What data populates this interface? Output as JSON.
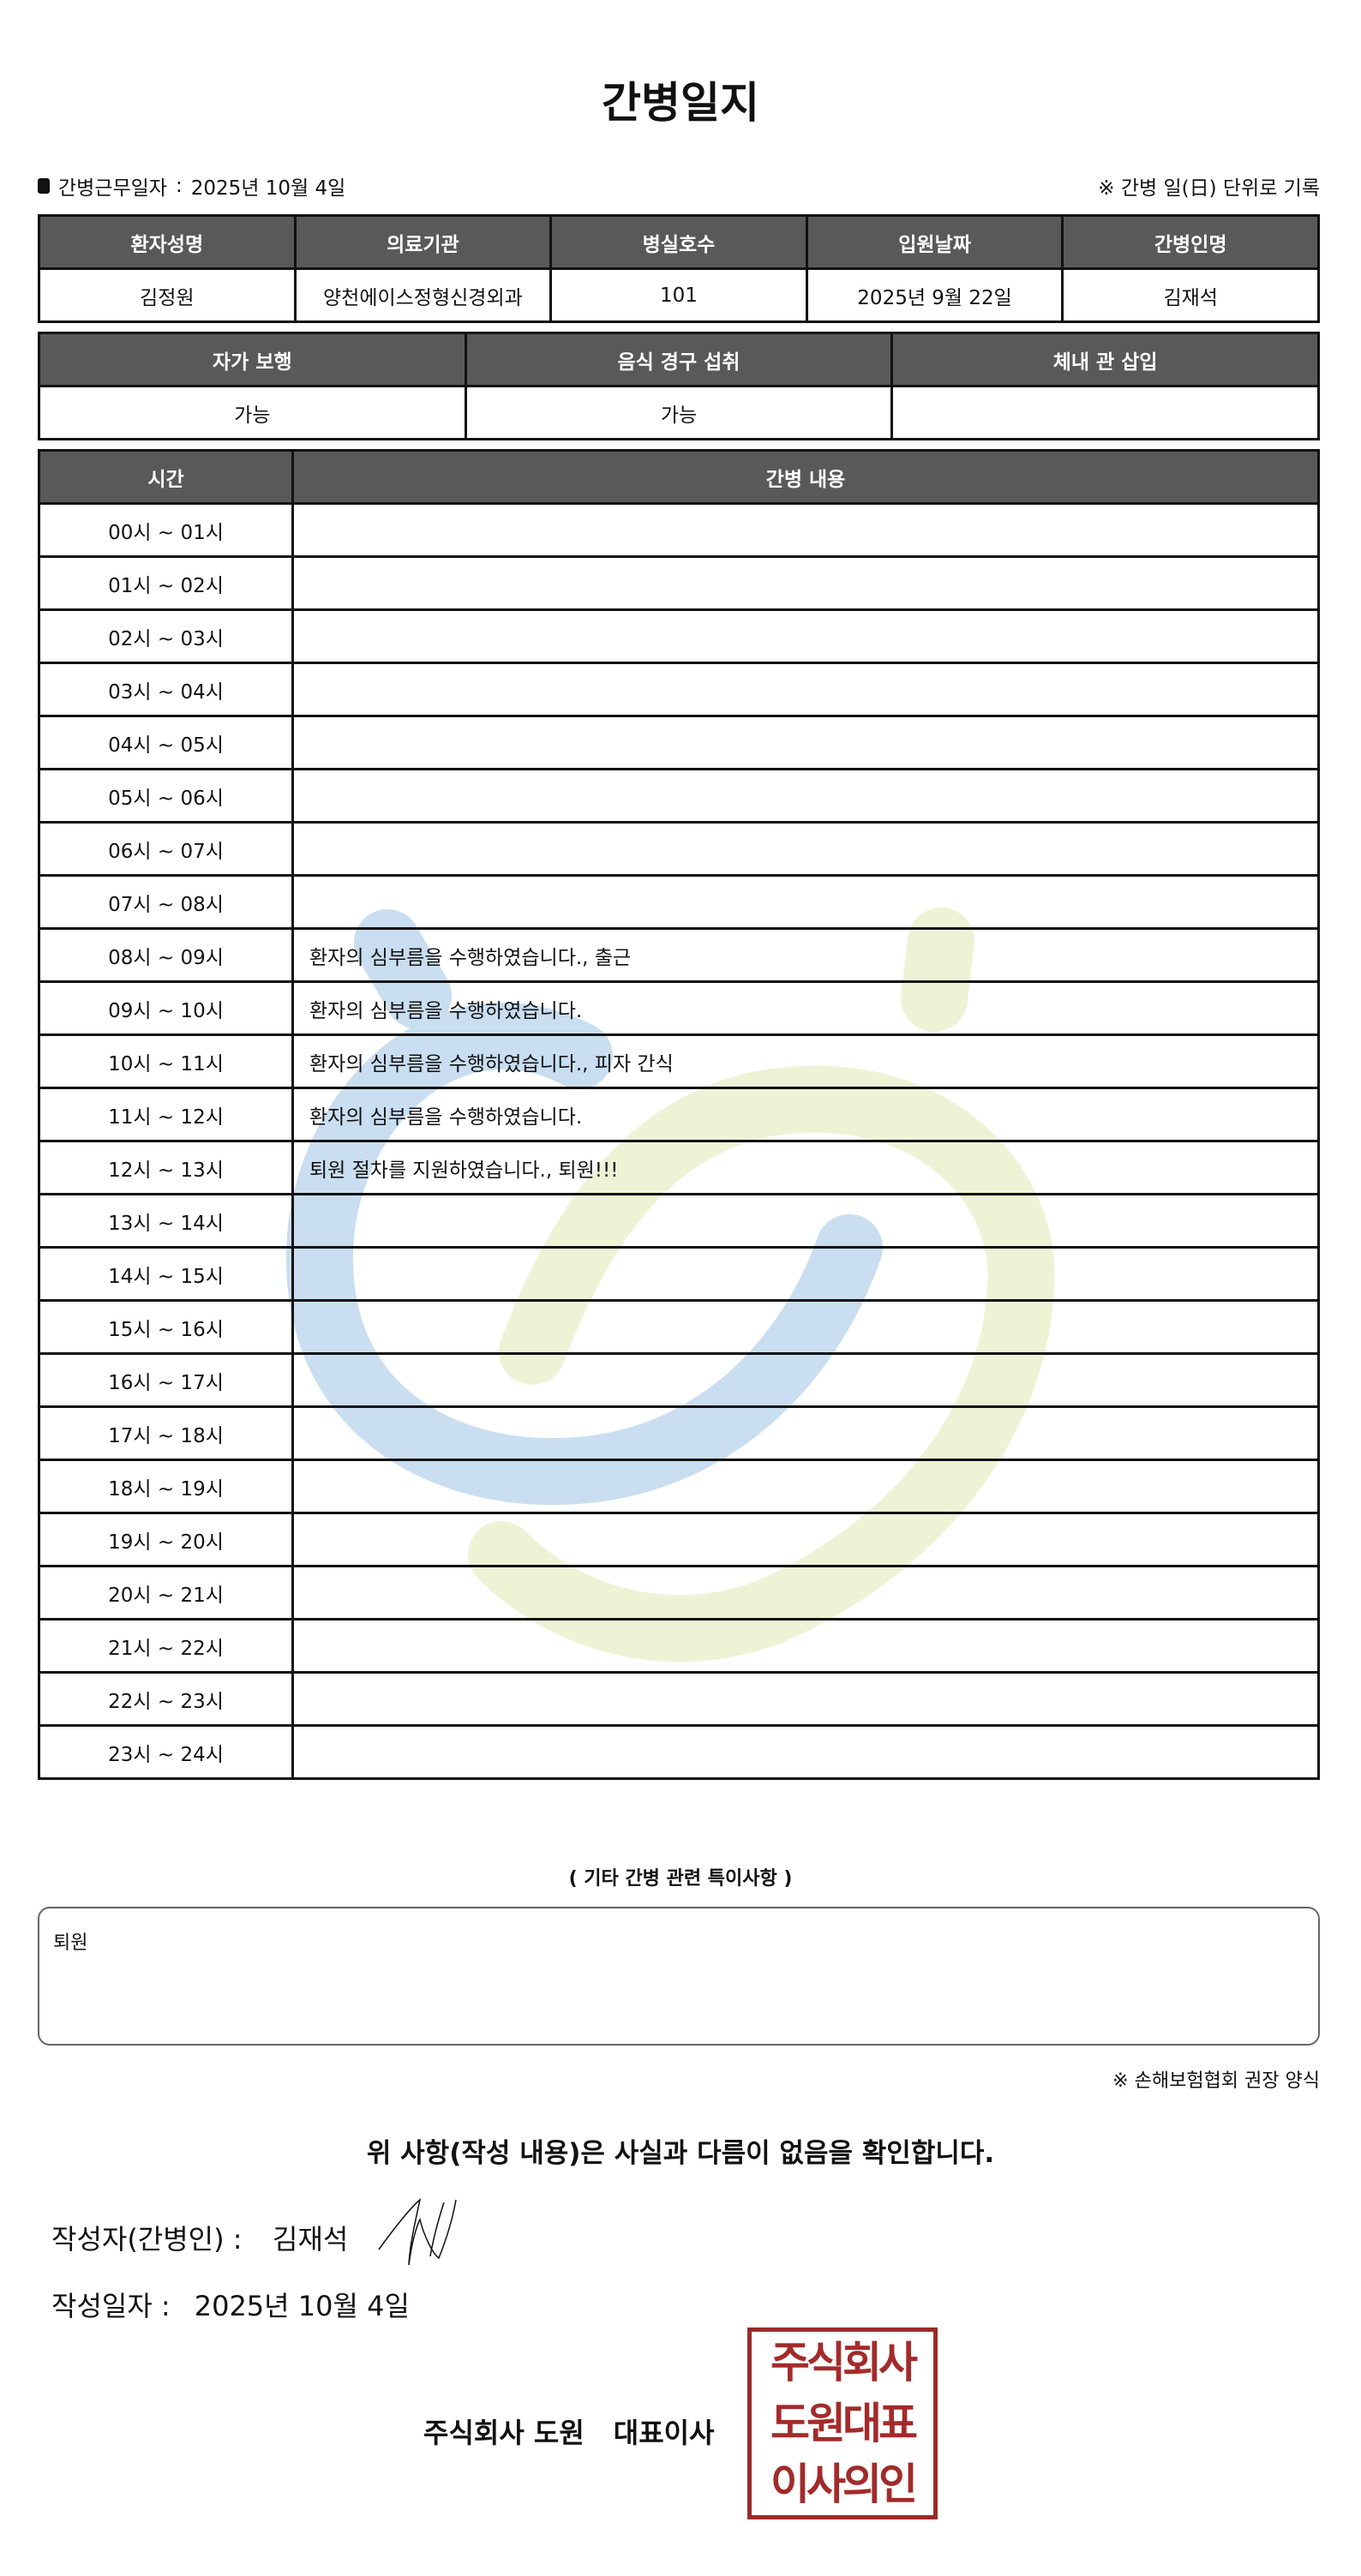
{
  "title": "간병일지",
  "info": {
    "label": "간병근무일자",
    "sep": ":",
    "date": "2025년 10월 4일",
    "note": "※ 간병 일(日) 단위로 기록"
  },
  "patient_table": {
    "headers": [
      "환자성명",
      "의료기관",
      "병실호수",
      "입원날짜",
      "간병인명"
    ],
    "values": [
      "김정원",
      "양천에이스정형신경외과",
      "101",
      "2025년 9월 22일",
      "김재석"
    ]
  },
  "status_table": {
    "headers": [
      "자가 보행",
      "음식 경구 섭취",
      "체내 관 삽입"
    ],
    "values": [
      "가능",
      "가능",
      ""
    ]
  },
  "log_table": {
    "headers": [
      "시간",
      "간병 내용"
    ],
    "rows": [
      {
        "time": "00시 ~ 01시",
        "content": ""
      },
      {
        "time": "01시 ~ 02시",
        "content": ""
      },
      {
        "time": "02시 ~ 03시",
        "content": ""
      },
      {
        "time": "03시 ~ 04시",
        "content": ""
      },
      {
        "time": "04시 ~ 05시",
        "content": ""
      },
      {
        "time": "05시 ~ 06시",
        "content": ""
      },
      {
        "time": "06시 ~ 07시",
        "content": ""
      },
      {
        "time": "07시 ~ 08시",
        "content": ""
      },
      {
        "time": "08시 ~ 09시",
        "content": "환자의 심부름을 수행하였습니다., 출근"
      },
      {
        "time": "09시 ~ 10시",
        "content": "환자의 심부름을 수행하였습니다."
      },
      {
        "time": "10시 ~ 11시",
        "content": "환자의 심부름을 수행하였습니다., 피자 간식"
      },
      {
        "time": "11시 ~ 12시",
        "content": "환자의 심부름을 수행하였습니다."
      },
      {
        "time": "12시 ~ 13시",
        "content": "퇴원 절차를 지원하였습니다., 퇴원!!!"
      },
      {
        "time": "13시 ~ 14시",
        "content": ""
      },
      {
        "time": "14시 ~ 15시",
        "content": ""
      },
      {
        "time": "15시 ~ 16시",
        "content": ""
      },
      {
        "time": "16시 ~ 17시",
        "content": ""
      },
      {
        "time": "17시 ~ 18시",
        "content": ""
      },
      {
        "time": "18시 ~ 19시",
        "content": ""
      },
      {
        "time": "19시 ~ 20시",
        "content": ""
      },
      {
        "time": "20시 ~ 21시",
        "content": ""
      },
      {
        "time": "21시 ~ 22시",
        "content": ""
      },
      {
        "time": "22시 ~ 23시",
        "content": ""
      },
      {
        "time": "23시 ~ 24시",
        "content": ""
      }
    ]
  },
  "special": {
    "heading": "( 기타 간병 관련 특이사항 )",
    "text": "퇴원"
  },
  "form_note": "※ 손해보험협회 권장 양식",
  "confirm": "위 사항(작성 내용)은 사실과 다름이 없음을 확인합니다.",
  "writer": {
    "label": "작성자(간병인) :",
    "name": "김재석"
  },
  "written_date": {
    "label": "작성일자 :",
    "value": "2025년 10월 4일"
  },
  "company": {
    "name": "주식회사 도원",
    "title": "대표이사"
  },
  "seal": {
    "lines": [
      "주식회사",
      "도원대표",
      "이사의인"
    ],
    "color": "#9b2a2a"
  },
  "colors": {
    "header_bg": "#595959",
    "watermark_blue": "#c9def0",
    "watermark_green": "#eef3d6"
  }
}
